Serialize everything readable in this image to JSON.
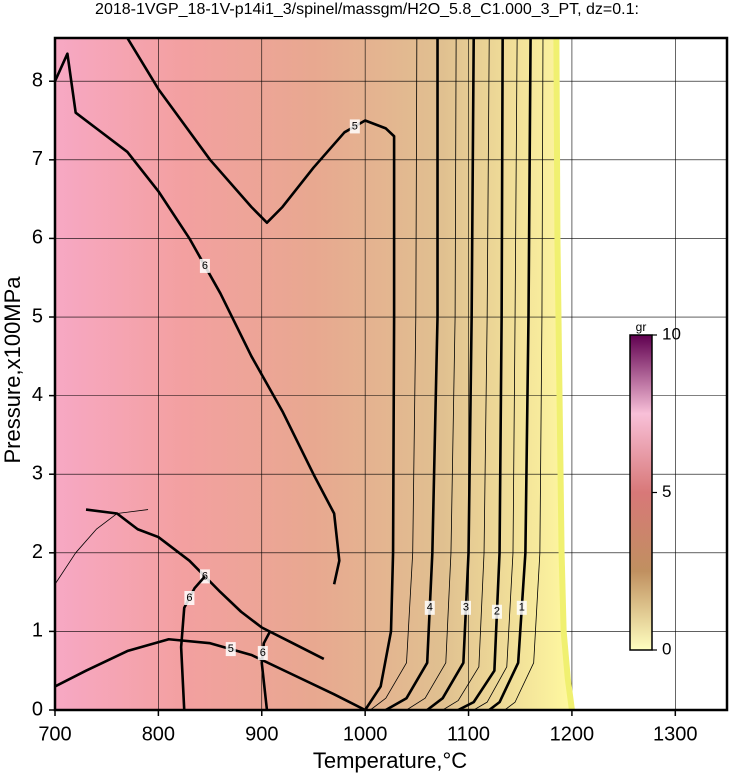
{
  "chart_data": {
    "type": "contour",
    "title": "2018-1VGP_18-1V-p14i1_3/spinel/massgm/H2O_5.8_C1.000_3_PT, dz=0.1:",
    "xlabel": "Temperature,°C",
    "ylabel": "Pressure,x100MPa",
    "xlim": [
      700,
      1350
    ],
    "ylim": [
      0,
      8.55
    ],
    "xticks": [
      700,
      800,
      900,
      1000,
      1100,
      1200,
      1300
    ],
    "yticks": [
      0,
      1,
      2,
      3,
      4,
      5,
      6,
      7,
      8
    ],
    "grid": true,
    "fill_colors": [
      "#f7a8c4",
      "#f3a0a0",
      "#e8a890",
      "#e0c090",
      "#fff9a0"
    ],
    "contours": [
      {
        "level": 0,
        "major": false,
        "x": [
          1185,
          1186,
          1188,
          1190,
          1192,
          1196,
          1200
        ],
        "y": [
          8.55,
          6,
          4,
          2,
          1,
          0.4,
          0
        ]
      },
      {
        "level": 6,
        "major": true,
        "x": [
          700,
          712,
          720,
          740,
          770,
          800,
          830,
          860,
          890,
          920,
          950,
          970,
          975,
          970
        ],
        "y": [
          8.0,
          8.35,
          7.6,
          7.4,
          7.1,
          6.6,
          6.0,
          5.3,
          4.5,
          3.8,
          3.0,
          2.5,
          1.9,
          1.6
        ]
      },
      {
        "level": 5,
        "major": true,
        "x": [
          770,
          800,
          850,
          890,
          905,
          920,
          950,
          980,
          1000,
          1020,
          1028,
          1028,
          1027,
          1025,
          1015,
          1000
        ],
        "y": [
          8.55,
          7.9,
          7.0,
          6.4,
          6.2,
          6.4,
          6.9,
          7.35,
          7.5,
          7.4,
          7.3,
          5,
          2,
          1,
          0.3,
          0
        ]
      },
      {
        "level": 4,
        "major": true,
        "x": [
          1070,
          1070,
          1065,
          1060,
          1040,
          1020
        ],
        "y": [
          8.55,
          5,
          2,
          0.6,
          0.15,
          0
        ]
      },
      {
        "level": 3,
        "major": true,
        "x": [
          1105,
          1103,
          1100,
          1095,
          1075,
          1060
        ],
        "y": [
          8.55,
          5,
          2,
          0.6,
          0.15,
          0
        ]
      },
      {
        "level": 2,
        "major": true,
        "x": [
          1133,
          1132,
          1130,
          1125,
          1105,
          1090
        ],
        "y": [
          8.55,
          5,
          2,
          0.5,
          0.1,
          0
        ]
      },
      {
        "level": 1,
        "major": true,
        "x": [
          1160,
          1158,
          1155,
          1148,
          1130,
          1120
        ],
        "y": [
          8.55,
          5,
          2,
          0.6,
          0.1,
          0
        ]
      },
      {
        "level": 4.5,
        "major": false,
        "x": [
          1050,
          1049,
          1046,
          1040,
          1020,
          1005
        ],
        "y": [
          8.55,
          5,
          2,
          0.6,
          0.15,
          0
        ]
      },
      {
        "level": 3.5,
        "major": false,
        "x": [
          1088,
          1087,
          1083,
          1078,
          1058,
          1040
        ],
        "y": [
          8.55,
          5,
          2,
          0.6,
          0.15,
          0
        ]
      },
      {
        "level": 2.5,
        "major": false,
        "x": [
          1120,
          1118,
          1115,
          1110,
          1090,
          1075
        ],
        "y": [
          8.55,
          5,
          2,
          0.55,
          0.12,
          0
        ]
      },
      {
        "level": 1.5,
        "major": false,
        "x": [
          1147,
          1145,
          1143,
          1137,
          1118,
          1105
        ],
        "y": [
          8.55,
          5,
          2,
          0.55,
          0.1,
          0
        ]
      },
      {
        "level": 0.5,
        "major": false,
        "x": [
          1172,
          1171,
          1169,
          1163,
          1145,
          1135
        ],
        "y": [
          8.55,
          5,
          2,
          0.6,
          0.1,
          0
        ]
      },
      {
        "level": 6,
        "major": true,
        "x": [
          730,
          760,
          780,
          800,
          830,
          860,
          880,
          900,
          930,
          960
        ],
        "y": [
          2.55,
          2.5,
          2.3,
          2.2,
          1.9,
          1.5,
          1.25,
          1.05,
          0.85,
          0.65
        ]
      },
      {
        "level": 5,
        "major": true,
        "x": [
          700,
          730,
          770,
          810,
          850,
          890,
          930,
          970,
          1000
        ],
        "y": [
          0.3,
          0.5,
          0.75,
          0.9,
          0.85,
          0.7,
          0.45,
          0.2,
          0
        ]
      },
      {
        "level": 6,
        "major": true,
        "x": [
          825,
          822,
          825,
          835,
          845
        ],
        "y": [
          0,
          0.8,
          1.3,
          1.55,
          1.7
        ]
      },
      {
        "level": 6,
        "major": true,
        "x": [
          905,
          900,
          902,
          908
        ],
        "y": [
          0,
          0.6,
          0.85,
          1.0
        ]
      },
      {
        "level": 5.5,
        "major": false,
        "x": [
          700,
          720,
          740,
          760,
          790
        ],
        "y": [
          1.6,
          2.0,
          2.3,
          2.5,
          2.55
        ]
      }
    ],
    "colorbar": {
      "label": "gr",
      "lim": [
        0,
        10
      ],
      "ticks": [
        0,
        5,
        10
      ],
      "colors": [
        "#ffffc0",
        "#c09060",
        "#d87878",
        "#f8c0d8",
        "#600050"
      ]
    }
  }
}
